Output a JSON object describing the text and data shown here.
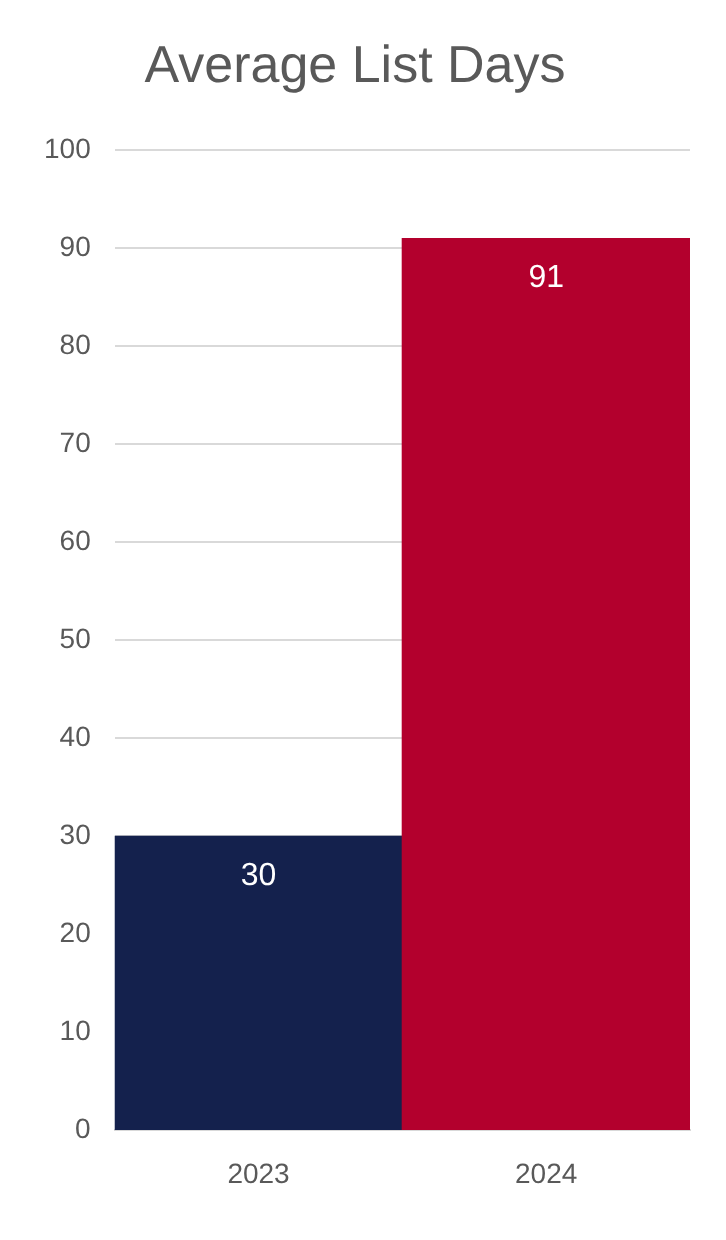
{
  "chart_data": {
    "type": "bar",
    "title": "Average List Days",
    "categories": [
      "2023",
      "2024"
    ],
    "values": [
      30,
      91
    ],
    "colors": [
      "#14214d",
      "#b3002d"
    ],
    "ylim": [
      0,
      100
    ],
    "yticks": [
      0,
      10,
      20,
      30,
      40,
      50,
      60,
      70,
      80,
      90,
      100
    ],
    "grid": "y",
    "data_labels": true
  }
}
